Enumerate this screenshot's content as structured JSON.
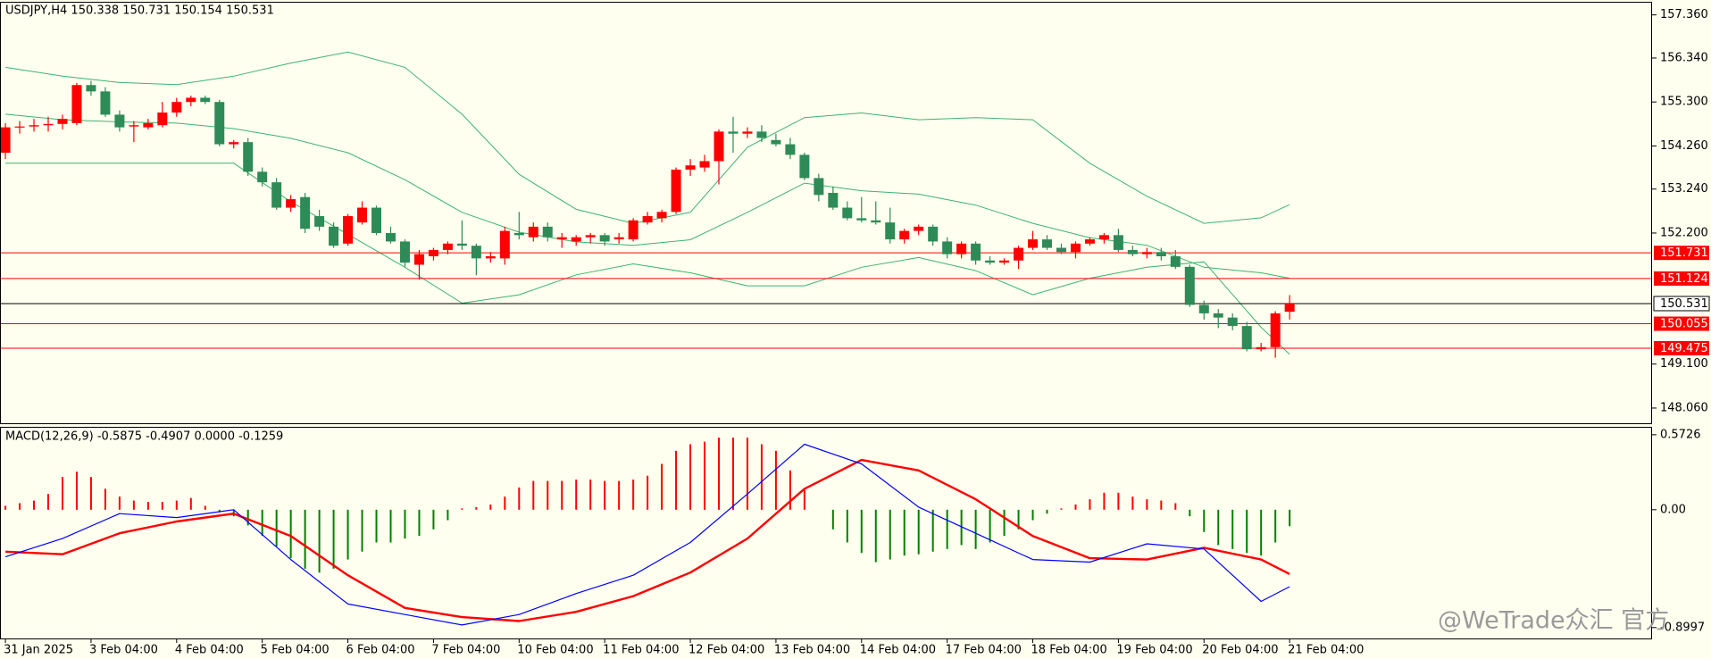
{
  "chart_data": [
    {
      "type": "candlestick",
      "title": "USDJPY,H4  150.338 150.731 150.154 150.531",
      "bull_color": "#ff0000",
      "bear_color": "#2e8b57",
      "xlim": [
        -0.38,
        115.4
      ],
      "ylim": [
        147.7,
        157.67
      ],
      "yticks": [
        {
          "value": 157.36,
          "label": "157.360"
        },
        {
          "value": 156.34,
          "label": "156.340"
        },
        {
          "value": 155.3,
          "label": "155.300"
        },
        {
          "value": 154.26,
          "label": "154.260"
        },
        {
          "value": 153.24,
          "label": "153.240"
        },
        {
          "value": 152.2,
          "label": "152.200"
        },
        {
          "value": 149.1,
          "label": "149.100"
        },
        {
          "value": 148.06,
          "label": "148.060"
        }
      ],
      "open": [
        154.1,
        154.7,
        154.72,
        154.75,
        154.78,
        154.8,
        155.7,
        155.55,
        155.0,
        154.72,
        154.7,
        154.75,
        155.05,
        155.3,
        155.4,
        155.3,
        154.3,
        154.35,
        153.65,
        153.4,
        152.8,
        153.05,
        152.6,
        152.35,
        151.95,
        152.45,
        152.8,
        152.2,
        152.0,
        151.45,
        151.65,
        151.8,
        151.95,
        151.9,
        151.6,
        151.6,
        152.2,
        152.1,
        152.35,
        152.05,
        152.0,
        152.1,
        152.15,
        152.05,
        152.05,
        152.45,
        152.55,
        152.7,
        153.7,
        153.75,
        153.9,
        154.6,
        154.55,
        154.6,
        154.4,
        154.3,
        154.05,
        153.5,
        153.15,
        152.8,
        152.55,
        152.5,
        152.45,
        152.05,
        152.25,
        152.35,
        152.0,
        151.7,
        151.95,
        151.55,
        151.5,
        151.55,
        151.85,
        152.05,
        151.85,
        151.75,
        151.95,
        152.05,
        152.15,
        151.8,
        151.7,
        151.75,
        151.65,
        151.4,
        150.5,
        150.3,
        150.2,
        150.0,
        149.45,
        149.5,
        150.338
      ],
      "high": [
        154.8,
        154.85,
        154.9,
        154.95,
        155.0,
        155.75,
        155.8,
        155.65,
        155.1,
        154.85,
        154.9,
        155.3,
        155.4,
        155.45,
        155.45,
        155.35,
        154.4,
        154.45,
        153.75,
        153.5,
        153.1,
        153.15,
        152.75,
        152.45,
        152.65,
        152.95,
        152.85,
        152.35,
        152.05,
        151.8,
        151.85,
        152.0,
        152.5,
        151.95,
        151.75,
        152.35,
        152.7,
        152.45,
        152.45,
        152.2,
        152.15,
        152.2,
        152.2,
        152.2,
        152.55,
        152.7,
        152.75,
        153.75,
        153.95,
        154.05,
        154.65,
        154.95,
        154.7,
        154.75,
        154.55,
        154.45,
        154.1,
        153.6,
        153.3,
        152.95,
        153.05,
        152.95,
        152.8,
        152.3,
        152.4,
        152.4,
        152.1,
        152.0,
        152.0,
        151.65,
        151.6,
        151.9,
        152.25,
        152.15,
        151.95,
        152.0,
        152.1,
        152.2,
        152.3,
        151.9,
        151.85,
        151.85,
        151.8,
        151.45,
        150.6,
        150.4,
        150.3,
        150.1,
        149.6,
        150.35,
        150.731
      ],
      "low": [
        153.95,
        154.55,
        154.6,
        154.6,
        154.65,
        154.75,
        155.45,
        154.95,
        154.6,
        154.35,
        154.65,
        154.7,
        154.95,
        155.2,
        155.25,
        154.25,
        154.2,
        153.55,
        153.3,
        152.75,
        152.7,
        152.2,
        152.25,
        151.85,
        151.9,
        152.4,
        152.15,
        151.95,
        151.4,
        151.1,
        151.55,
        151.7,
        151.8,
        151.2,
        151.5,
        151.45,
        152.05,
        152.0,
        152.0,
        151.85,
        151.9,
        151.95,
        151.9,
        151.95,
        152.0,
        152.4,
        152.45,
        152.65,
        153.55,
        153.65,
        153.35,
        154.1,
        154.45,
        154.35,
        154.25,
        153.95,
        153.45,
        152.95,
        152.75,
        152.5,
        152.45,
        152.4,
        151.95,
        151.95,
        152.15,
        151.9,
        151.6,
        151.6,
        151.45,
        151.45,
        151.45,
        151.35,
        151.8,
        151.8,
        151.7,
        151.6,
        151.9,
        151.95,
        151.75,
        151.65,
        151.6,
        151.55,
        151.35,
        150.45,
        150.15,
        149.95,
        149.9,
        149.4,
        149.4,
        149.25,
        150.154
      ],
      "close": [
        154.7,
        154.72,
        154.75,
        154.78,
        154.9,
        155.7,
        155.55,
        155.0,
        154.7,
        154.75,
        154.8,
        155.05,
        155.3,
        155.4,
        155.3,
        154.3,
        154.35,
        153.65,
        153.4,
        152.8,
        153.0,
        152.3,
        152.35,
        151.9,
        152.6,
        152.8,
        152.2,
        152.0,
        151.5,
        151.7,
        151.8,
        151.95,
        151.9,
        151.6,
        151.65,
        152.25,
        152.15,
        152.35,
        152.1,
        152.1,
        152.1,
        152.15,
        152.0,
        152.1,
        152.5,
        152.6,
        152.7,
        153.7,
        153.8,
        153.9,
        154.6,
        154.55,
        154.6,
        154.45,
        154.3,
        154.05,
        153.5,
        153.1,
        152.8,
        152.55,
        152.5,
        152.45,
        152.05,
        152.25,
        152.35,
        152.0,
        151.7,
        151.95,
        151.55,
        151.5,
        151.55,
        151.85,
        152.05,
        151.85,
        151.75,
        151.95,
        152.05,
        152.15,
        151.8,
        151.7,
        151.75,
        151.65,
        151.4,
        150.5,
        150.3,
        150.2,
        150.0,
        149.45,
        149.5,
        150.3,
        150.531
      ],
      "band_x": [
        0,
        4,
        8,
        12,
        16,
        20,
        24,
        28,
        32,
        36,
        40,
        44,
        48,
        52,
        56,
        60,
        64,
        68,
        72,
        76,
        80,
        84,
        88,
        90
      ],
      "series": [
        {
          "color": "#3cb371",
          "values": [
            156.12,
            155.91,
            155.76,
            155.71,
            155.91,
            156.22,
            156.48,
            156.12,
            155.01,
            153.59,
            152.76,
            152.43,
            152.69,
            154.23,
            154.93,
            155.04,
            154.88,
            154.93,
            154.88,
            153.85,
            153.07,
            152.43,
            152.56,
            152.87
          ]
        },
        {
          "color": "#3cb371",
          "values": [
            155.01,
            154.88,
            154.83,
            154.8,
            154.67,
            154.44,
            154.1,
            153.46,
            152.69,
            152.22,
            151.99,
            151.91,
            152.04,
            152.69,
            153.38,
            153.2,
            153.12,
            152.86,
            152.43,
            152.09,
            151.91,
            151.39,
            151.26,
            151.13
          ]
        },
        {
          "color": "#3cb371",
          "values": [
            153.85,
            153.85,
            153.85,
            153.85,
            153.85,
            152.94,
            152.17,
            151.39,
            150.54,
            150.74,
            151.21,
            151.47,
            151.26,
            150.95,
            150.95,
            151.39,
            151.62,
            151.31,
            150.74,
            151.13,
            151.39,
            151.52,
            149.97,
            149.33
          ]
        }
      ],
      "levels": [
        151.731,
        151.124,
        150.055,
        149.475
      ],
      "level_color": "#ff0000",
      "bid": 150.531,
      "bid_color": "#000000"
    },
    {
      "type": "combo",
      "title": "MACD(12,26,9) -0.5875 -0.4907 0.0000 -0.1259",
      "xlim": [
        -0.38,
        115.4
      ],
      "ylim": [
        -0.983,
        0.633
      ],
      "yticks": [
        0.5726,
        {
          "value": 0,
          "label": "0.00"
        },
        -0.8997
      ],
      "xticks": [
        {
          "value": 0,
          "label": "31 Jan 2025"
        },
        {
          "value": 6,
          "label": "3 Feb 04:00"
        },
        {
          "value": 12,
          "label": "4 Feb 04:00"
        },
        {
          "value": 18,
          "label": "5 Feb 04:00"
        },
        {
          "value": 24,
          "label": "6 Feb 04:00"
        },
        {
          "value": 30,
          "label": "7 Feb 04:00"
        },
        {
          "value": 36,
          "label": "10 Feb 04:00"
        },
        {
          "value": 42,
          "label": "11 Feb 04:00"
        },
        {
          "value": 48,
          "label": "12 Feb 04:00"
        },
        {
          "value": 54,
          "label": "13 Feb 04:00"
        },
        {
          "value": 60,
          "label": "14 Feb 04:00"
        },
        {
          "value": 66,
          "label": "17 Feb 04:00"
        },
        {
          "value": 72,
          "label": "18 Feb 04:00"
        },
        {
          "value": 78,
          "label": "19 Feb 04:00"
        },
        {
          "value": 84,
          "label": "20 Feb 04:00"
        },
        {
          "value": 90,
          "label": "21 Feb 04:00"
        }
      ],
      "pos_color": "#ff0000",
      "neg_color": "#008000",
      "histogram": [
        0.03,
        0.05,
        0.07,
        0.12,
        0.25,
        0.29,
        0.25,
        0.16,
        0.1,
        0.07,
        0.06,
        0.06,
        0.07,
        0.09,
        0.03,
        -0.02,
        -0.05,
        -0.12,
        -0.2,
        -0.28,
        -0.37,
        -0.45,
        -0.48,
        -0.45,
        -0.38,
        -0.32,
        -0.25,
        -0.25,
        -0.22,
        -0.2,
        -0.15,
        -0.08,
        0.01,
        0.02,
        0.04,
        0.1,
        0.17,
        0.22,
        0.22,
        0.22,
        0.23,
        0.23,
        0.22,
        0.22,
        0.23,
        0.26,
        0.35,
        0.45,
        0.5,
        0.52,
        0.55,
        0.55,
        0.55,
        0.5,
        0.45,
        0.3,
        0.15,
        0.0,
        -0.15,
        -0.25,
        -0.33,
        -0.4,
        -0.38,
        -0.35,
        -0.34,
        -0.32,
        -0.3,
        -0.27,
        -0.3,
        -0.25,
        -0.2,
        -0.15,
        -0.08,
        -0.03,
        0.01,
        0.04,
        0.08,
        0.13,
        0.13,
        0.1,
        0.08,
        0.07,
        0.05,
        -0.05,
        -0.17,
        -0.27,
        -0.3,
        -0.33,
        -0.35,
        -0.25,
        -0.1259
      ],
      "line_x": [
        0,
        4,
        8,
        12,
        16,
        20,
        24,
        28,
        32,
        36,
        40,
        44,
        48,
        52,
        56,
        60,
        64,
        68,
        72,
        76,
        80,
        84,
        88,
        90
      ],
      "series": [
        {
          "color": "#ff0000",
          "width": 2.4,
          "values": [
            -0.32,
            -0.34,
            -0.18,
            -0.09,
            -0.03,
            -0.2,
            -0.5,
            -0.75,
            -0.82,
            -0.85,
            -0.78,
            -0.66,
            -0.48,
            -0.22,
            0.16,
            0.38,
            0.3,
            0.08,
            -0.2,
            -0.37,
            -0.38,
            -0.29,
            -0.38,
            -0.4907
          ]
        },
        {
          "color": "#0000ff",
          "width": 1.2,
          "values": [
            -0.36,
            -0.22,
            -0.03,
            -0.06,
            0.0,
            -0.38,
            -0.72,
            -0.8,
            -0.88,
            -0.8,
            -0.64,
            -0.5,
            -0.25,
            0.12,
            0.5,
            0.35,
            0.02,
            -0.18,
            -0.38,
            -0.4,
            -0.26,
            -0.3,
            -0.7,
            -0.5875
          ]
        }
      ]
    }
  ],
  "watermark": "@WeTrade众汇 官方"
}
